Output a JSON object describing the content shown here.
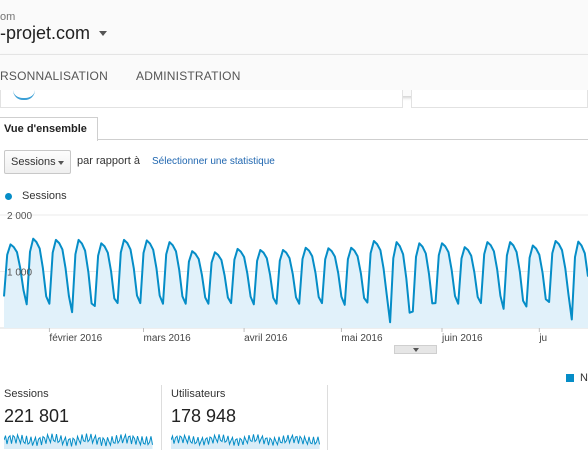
{
  "header": {
    "account_fragment": "om",
    "property": "-projet.com"
  },
  "nav": {
    "tabs": [
      "RSONNALISATION",
      "ADMINISTRATION"
    ]
  },
  "tabs": {
    "active": "Vue d'ensemble"
  },
  "controls": {
    "metric_select": "Sessions",
    "compare_label": "par rapport à",
    "compare_link": "Sélectionner une statistique"
  },
  "colors": {
    "series": "#058dc7",
    "fill": "#e1f1fa",
    "link": "#2067b0"
  },
  "chart_data": {
    "type": "area",
    "legend": "Sessions",
    "y_ticks": [
      "2 000",
      "1 000"
    ],
    "ylim": [
      0,
      2000
    ],
    "x_tick_labels": [
      "février 2016",
      "mars 2016",
      "avril 2016",
      "mai 2016",
      "juin 2016",
      "ju"
    ],
    "x_days": 180,
    "month_start_days": [
      14,
      43,
      74,
      104,
      135,
      165
    ],
    "weekly_peaks": [
      1480,
      1580,
      1560,
      1560,
      1500,
      1560,
      1550,
      1520,
      1360,
      1340,
      1400,
      1380,
      1380,
      1420,
      1410,
      1420,
      1540,
      1520,
      1500,
      1500,
      1430,
      1520,
      1520,
      1460,
      1540,
      1530
    ],
    "weekly_troughs": [
      560,
      420,
      430,
      280,
      390,
      440,
      440,
      430,
      430,
      430,
      440,
      420,
      430,
      430,
      440,
      410,
      450,
      100,
      290,
      440,
      430,
      440,
      340,
      380,
      460,
      150
    ],
    "series": [
      {
        "name": "Sessions"
      }
    ]
  },
  "legend_bottom": "Ne",
  "metrics": [
    {
      "label": "Sessions",
      "value": "221 801"
    },
    {
      "label": "Utilisateurs",
      "value": "178 948"
    }
  ]
}
